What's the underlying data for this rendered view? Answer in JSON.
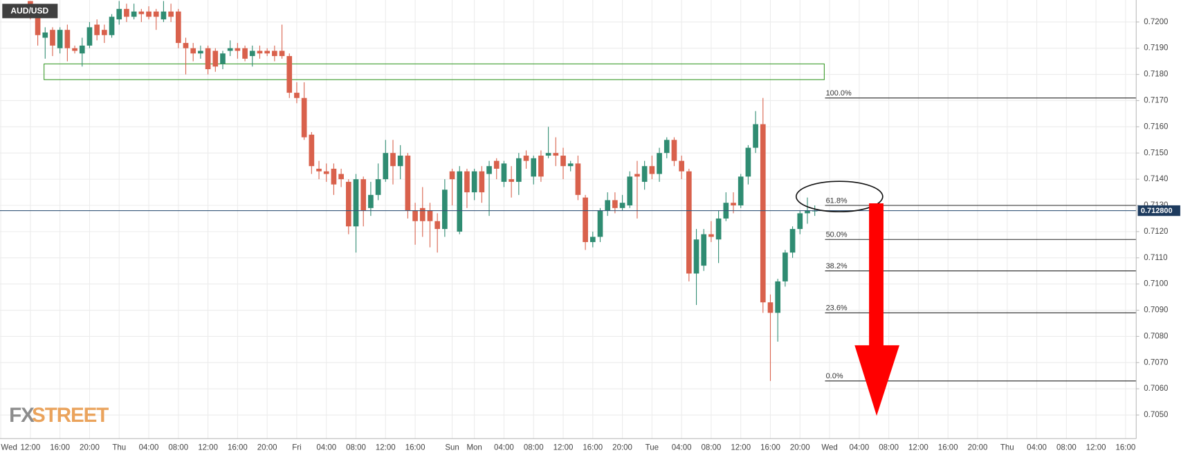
{
  "chart_data": {
    "type": "candlestick",
    "title": "AUD/USD",
    "watermark": [
      "FX",
      "STREET"
    ],
    "up_color": "#2f8c72",
    "down_color": "#d9614c",
    "ylim": [
      0.7041,
      0.72084
    ],
    "yticks": [
      {
        "value": 0.705,
        "label": "0.7050"
      },
      {
        "value": 0.706,
        "label": "0.7060"
      },
      {
        "value": 0.707,
        "label": "0.7070"
      },
      {
        "value": 0.708,
        "label": "0.7080"
      },
      {
        "value": 0.709,
        "label": "0.7090"
      },
      {
        "value": 0.71,
        "label": "0.7100"
      },
      {
        "value": 0.711,
        "label": "0.7110"
      },
      {
        "value": 0.712,
        "label": "0.7120"
      },
      {
        "value": 0.713,
        "label": "0.7130"
      },
      {
        "value": 0.714,
        "label": "0.7140"
      },
      {
        "value": 0.715,
        "label": "0.7150"
      },
      {
        "value": 0.716,
        "label": "0.7160"
      },
      {
        "value": 0.717,
        "label": "0.7170"
      },
      {
        "value": 0.718,
        "label": "0.7180"
      },
      {
        "value": 0.719,
        "label": "0.7190"
      },
      {
        "value": 0.72,
        "label": "0.7200"
      }
    ],
    "grid": true,
    "categories": [
      "Wed",
      null,
      null,
      null,
      "12:00",
      null,
      null,
      null,
      "16:00",
      null,
      null,
      null,
      "20:00",
      null,
      null,
      null,
      "Thu",
      null,
      null,
      null,
      "04:00",
      null,
      null,
      null,
      "08:00",
      null,
      null,
      null,
      "12:00",
      null,
      null,
      null,
      "16:00",
      null,
      null,
      null,
      "20:00",
      null,
      null,
      null,
      "Fri",
      null,
      null,
      null,
      "04:00",
      null,
      null,
      null,
      "08:00",
      null,
      null,
      null,
      "12:00",
      null,
      null,
      null,
      "16:00",
      null,
      null,
      null,
      null,
      "Sun",
      null,
      null,
      "Mon",
      null,
      null,
      null,
      "04:00",
      null,
      null,
      null,
      "08:00",
      null,
      null,
      null,
      "12:00",
      null,
      null,
      null,
      "16:00",
      null,
      null,
      null,
      "20:00",
      null,
      null,
      null,
      "Tue",
      null,
      null,
      null,
      "04:00",
      null,
      null,
      null,
      "08:00",
      null,
      null,
      null,
      "12:00",
      null,
      null,
      null,
      "16:00",
      null,
      null,
      null,
      "20:00",
      null,
      null,
      null,
      "Wed",
      null,
      null,
      null,
      "04:00",
      null,
      null,
      null,
      "08:00",
      null,
      null,
      null,
      "12:00",
      null,
      null,
      null,
      "16:00",
      null,
      null,
      null,
      "20:00",
      null,
      null,
      null,
      "Thu",
      null,
      null,
      null,
      "04:00",
      null,
      null,
      null,
      "08:00",
      null,
      null,
      null,
      "12:00",
      null,
      null,
      null,
      "16:00"
    ],
    "ohlc": [
      null,
      null,
      null,
      null,
      [
        0.7208,
        0.7208,
        0.7201,
        0.7202
      ],
      [
        0.7202,
        0.7203,
        0.7191,
        0.7195
      ],
      [
        0.7194,
        0.7198,
        0.7186,
        0.7196
      ],
      [
        0.7197,
        0.7198,
        0.7187,
        0.7191
      ],
      [
        0.719,
        0.7198,
        0.7188,
        0.7197
      ],
      [
        0.7197,
        0.7199,
        0.7185,
        0.719
      ],
      [
        0.719,
        0.7191,
        0.7188,
        0.7189
      ],
      [
        0.7188,
        0.7194,
        0.7183,
        0.7191
      ],
      [
        0.7191,
        0.72,
        0.719,
        0.7198
      ],
      [
        0.7199,
        0.7201,
        0.7193,
        0.7195
      ],
      [
        0.7197,
        0.7199,
        0.7192,
        0.7195
      ],
      [
        0.7195,
        0.7203,
        0.7194,
        0.7202
      ],
      [
        0.7201,
        0.7208,
        0.7199,
        0.7205
      ],
      [
        0.7205,
        0.7207,
        0.72,
        0.7202
      ],
      [
        0.7202,
        0.7207,
        0.7201,
        0.7204
      ],
      [
        0.7204,
        0.7205,
        0.72,
        0.7203
      ],
      [
        0.7204,
        0.7206,
        0.7201,
        0.7202
      ],
      [
        0.7204,
        0.7205,
        0.7197,
        0.7202
      ],
      [
        0.7201,
        0.7208,
        0.72,
        0.7204
      ],
      [
        0.7204,
        0.7207,
        0.72,
        0.7202
      ],
      [
        0.7204,
        0.7205,
        0.719,
        0.7192
      ],
      [
        0.7192,
        0.7194,
        0.718,
        0.719
      ],
      [
        0.719,
        0.7192,
        0.7185,
        0.7188
      ],
      [
        0.7188,
        0.7191,
        0.7186,
        0.7189
      ],
      [
        0.719,
        0.7191,
        0.718,
        0.7182
      ],
      [
        0.7189,
        0.719,
        0.7181,
        0.7183
      ],
      [
        0.7184,
        0.7189,
        0.7182,
        0.7188
      ],
      [
        0.7189,
        0.7193,
        0.7187,
        0.719
      ],
      [
        0.719,
        0.7192,
        0.7186,
        0.7189
      ],
      [
        0.719,
        0.7191,
        0.7185,
        0.7186
      ],
      [
        0.7187,
        0.7191,
        0.7183,
        0.7189
      ],
      [
        0.7189,
        0.7191,
        0.7186,
        0.7188
      ],
      [
        0.7189,
        0.719,
        0.7187,
        0.7188
      ],
      [
        0.7189,
        0.7191,
        0.7185,
        0.7187
      ],
      [
        0.7189,
        0.7199,
        0.7186,
        0.7187
      ],
      [
        0.7187,
        0.7188,
        0.7171,
        0.7173
      ],
      [
        0.7173,
        0.7177,
        0.7169,
        0.7171
      ],
      [
        0.7171,
        0.7177,
        0.7155,
        0.7156
      ],
      [
        0.7157,
        0.7158,
        0.7142,
        0.7145
      ],
      [
        0.7144,
        0.7147,
        0.714,
        0.7143
      ],
      [
        0.7143,
        0.7146,
        0.7139,
        0.7142
      ],
      [
        0.7144,
        0.7146,
        0.7134,
        0.7138
      ],
      [
        0.7142,
        0.7144,
        0.7137,
        0.714
      ],
      [
        0.7139,
        0.714,
        0.7119,
        0.7122
      ],
      [
        0.7122,
        0.7142,
        0.7112,
        0.714
      ],
      [
        0.714,
        0.7141,
        0.7122,
        0.7128
      ],
      [
        0.7129,
        0.7139,
        0.7126,
        0.7134
      ],
      [
        0.7134,
        0.7146,
        0.7132,
        0.714
      ],
      [
        0.714,
        0.7155,
        0.7139,
        0.715
      ],
      [
        0.715,
        0.7155,
        0.7138,
        0.7145
      ],
      [
        0.7145,
        0.7153,
        0.714,
        0.7149
      ],
      [
        0.7149,
        0.715,
        0.7125,
        0.7128
      ],
      [
        0.7128,
        0.7131,
        0.7115,
        0.7124
      ],
      [
        0.7129,
        0.7137,
        0.7118,
        0.7124
      ],
      [
        0.7128,
        0.7131,
        0.7114,
        0.7124
      ],
      [
        0.7124,
        0.7127,
        0.7112,
        0.7121
      ],
      [
        0.7121,
        0.714,
        0.7118,
        0.7136
      ],
      [
        0.7143,
        0.7144,
        0.713,
        0.714
      ],
      [
        0.712,
        0.7145,
        0.7119,
        0.7143
      ],
      [
        0.7143,
        0.7144,
        0.7129,
        0.7135
      ],
      [
        0.7135,
        0.7144,
        0.7132,
        0.7143
      ],
      [
        0.7143,
        0.7145,
        0.7131,
        0.7135
      ],
      [
        0.7142,
        0.7147,
        0.7126,
        0.7145
      ],
      [
        0.7147,
        0.7148,
        0.714,
        0.7144
      ],
      [
        0.7139,
        0.7147,
        0.7137,
        0.7146
      ],
      [
        0.714,
        0.7145,
        0.7133,
        0.7139
      ],
      [
        0.7139,
        0.715,
        0.7134,
        0.7148
      ],
      [
        0.7149,
        0.7151,
        0.7144,
        0.7147
      ],
      [
        0.7141,
        0.7149,
        0.7138,
        0.7148
      ],
      [
        0.7149,
        0.7151,
        0.7139,
        0.7141
      ],
      [
        0.7149,
        0.716,
        0.7148,
        0.715
      ],
      [
        0.715,
        0.7156,
        0.7145,
        0.7149
      ],
      [
        0.7149,
        0.7152,
        0.714,
        0.7145
      ],
      [
        0.7145,
        0.7147,
        0.7143,
        0.7146
      ],
      [
        0.7146,
        0.7149,
        0.7132,
        0.7134
      ],
      [
        0.7133,
        0.7134,
        0.7113,
        0.7116
      ],
      [
        0.7116,
        0.712,
        0.7114,
        0.7118
      ],
      [
        0.7118,
        0.7129,
        0.7116,
        0.7128
      ],
      [
        0.7128,
        0.7135,
        0.7126,
        0.7132
      ],
      [
        0.7132,
        0.7135,
        0.7127,
        0.7129
      ],
      [
        0.7129,
        0.7134,
        0.7128,
        0.7131
      ],
      [
        0.713,
        0.7143,
        0.7129,
        0.7141
      ],
      [
        0.7142,
        0.7147,
        0.7125,
        0.7141
      ],
      [
        0.7139,
        0.7147,
        0.7136,
        0.7145
      ],
      [
        0.7145,
        0.7149,
        0.714,
        0.7142
      ],
      [
        0.7142,
        0.7152,
        0.7139,
        0.715
      ],
      [
        0.715,
        0.7156,
        0.7148,
        0.7155
      ],
      [
        0.7155,
        0.7156,
        0.7145,
        0.7147
      ],
      [
        0.7147,
        0.7149,
        0.714,
        0.7143
      ],
      [
        0.7143,
        0.7144,
        0.7101,
        0.7104
      ],
      [
        0.7104,
        0.7121,
        0.7092,
        0.7117
      ],
      [
        0.7107,
        0.7121,
        0.7105,
        0.7119
      ],
      [
        0.7119,
        0.7124,
        0.7116,
        0.7118
      ],
      [
        0.7117,
        0.7128,
        0.7108,
        0.7125
      ],
      [
        0.7125,
        0.7135,
        0.7124,
        0.7131
      ],
      [
        0.7131,
        0.7135,
        0.7127,
        0.713
      ],
      [
        0.713,
        0.7142,
        0.7129,
        0.7141
      ],
      [
        0.7141,
        0.7153,
        0.7138,
        0.7152
      ],
      [
        0.7152,
        0.7166,
        0.715,
        0.7161
      ],
      [
        0.7161,
        0.7171,
        0.7089,
        0.7093
      ],
      [
        0.7093,
        0.7096,
        0.7063,
        0.7089
      ],
      [
        0.7089,
        0.7102,
        0.7078,
        0.7101
      ],
      [
        0.7101,
        0.7113,
        0.7099,
        0.7112
      ],
      [
        0.7112,
        0.7122,
        0.711,
        0.7121
      ],
      [
        0.7121,
        0.7128,
        0.7119,
        0.7127
      ],
      [
        0.7127,
        0.7133,
        0.7123,
        0.7128
      ],
      [
        0.7128,
        0.713,
        0.7126,
        0.7128
      ],
      null,
      null,
      null,
      null,
      null,
      null,
      null,
      null,
      null,
      null,
      null,
      null,
      null,
      null,
      null,
      null,
      null,
      null,
      null,
      null,
      null,
      null,
      null,
      null,
      null,
      null,
      null,
      null,
      null,
      null,
      null,
      null,
      null,
      null,
      null,
      null,
      null,
      null,
      null,
      null,
      null,
      null
    ],
    "zone": {
      "range": [
        0.7184,
        0.7178
      ],
      "color": "#3a9a2a"
    },
    "fib": [
      {
        "value": 0.7171,
        "label": "100.0%"
      },
      {
        "value": 0.713,
        "label": "61.8%"
      },
      {
        "value": 0.7117,
        "label": "50.0%"
      },
      {
        "value": 0.7105,
        "label": "38.2%"
      },
      {
        "value": 0.7089,
        "label": "23.6%"
      },
      {
        "value": 0.7063,
        "label": "0.0%"
      }
    ],
    "last_price": {
      "value": 0.7128,
      "label": "0.712800",
      "color": "#36577a"
    }
  }
}
